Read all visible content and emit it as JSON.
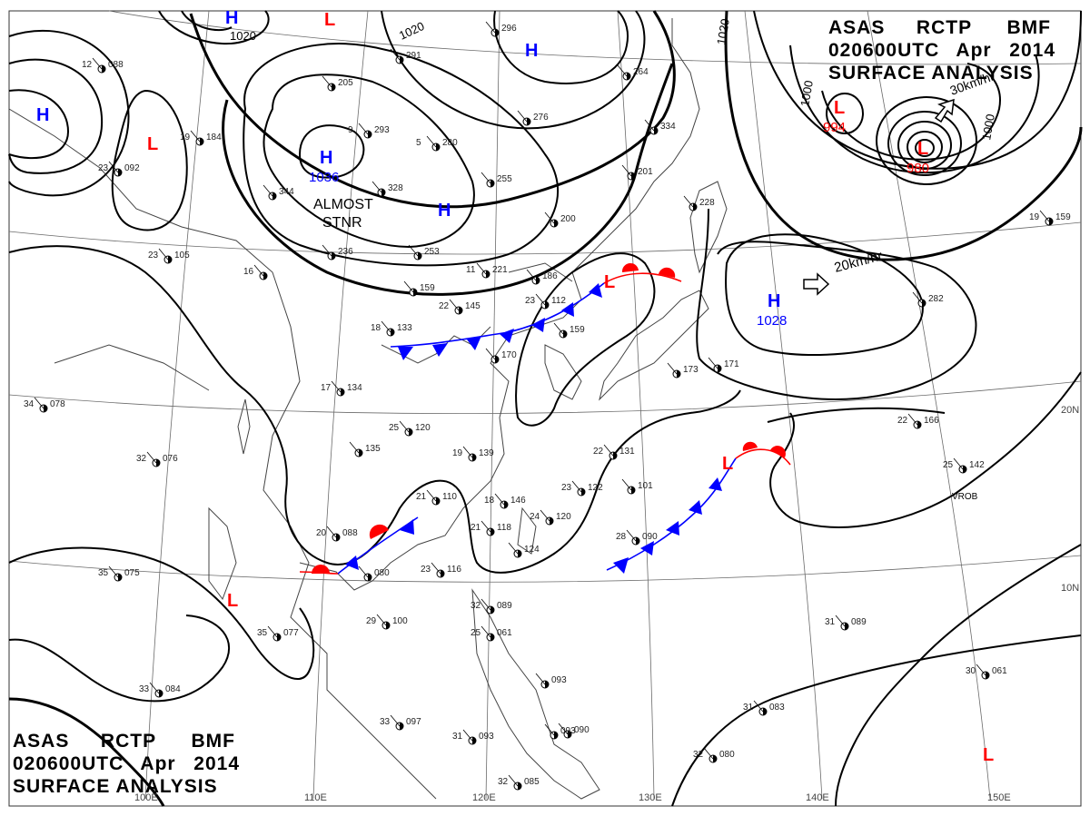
{
  "header": {
    "line1": [
      "ASAS",
      "RCTP",
      "BMF"
    ],
    "line2": [
      "020600UTC",
      "Apr",
      "2014"
    ],
    "line3": "SURFACE ANALYSIS"
  },
  "footer": {
    "line1": [
      "ASAS",
      "RCTP",
      "BMF"
    ],
    "line2": [
      "020600UTC",
      "Apr",
      "2014"
    ],
    "line3": "SURFACE ANALYSIS"
  },
  "longitudes": [
    "100E",
    "110E",
    "120E",
    "130E",
    "140E",
    "150E"
  ],
  "latitudes": [
    "20N",
    "10N"
  ],
  "isobar_labels": [
    "1020",
    "1020",
    "1020",
    "1000",
    "1000"
  ],
  "pressure_centers": [
    {
      "type": "H",
      "value": "1036"
    },
    {
      "type": "H",
      "value": "1028"
    },
    {
      "type": "L",
      "value": "994"
    },
    {
      "type": "L",
      "value": "980"
    },
    {
      "type": "H",
      "value": ""
    },
    {
      "type": "H",
      "value": ""
    },
    {
      "type": "H",
      "value": ""
    },
    {
      "type": "H",
      "value": ""
    },
    {
      "type": "L",
      "value": ""
    },
    {
      "type": "L",
      "value": ""
    },
    {
      "type": "L",
      "value": ""
    },
    {
      "type": "L",
      "value": ""
    },
    {
      "type": "L",
      "value": ""
    },
    {
      "type": "L",
      "value": ""
    }
  ],
  "annotations": {
    "stationary_note_1": "ALMOST",
    "stationary_note_2": "STNR",
    "motion_east": "20km/hr",
    "motion_low": "30km/hr",
    "station_code": "VROB"
  },
  "colors": {
    "high": "#0000ff",
    "low": "#ff0000",
    "cold_front": "#0000ff",
    "warm_front": "#ff0000",
    "isobar": "#000000",
    "coast": "#444444",
    "grid": "#555555"
  },
  "station_reports": [
    {
      "t": "12",
      "p": "088"
    },
    {
      "t": "23",
      "p": "092"
    },
    {
      "t": "19",
      "p": "184"
    },
    {
      "t": "9",
      "p": "293"
    },
    {
      "t": "5",
      "p": "280"
    },
    {
      "t": "",
      "p": "328"
    },
    {
      "t": "",
      "p": "344"
    },
    {
      "t": "",
      "p": "255"
    },
    {
      "t": "",
      "p": "205"
    },
    {
      "t": "",
      "p": "291"
    },
    {
      "t": "",
      "p": "296"
    },
    {
      "t": "",
      "p": "276"
    },
    {
      "t": "",
      "p": "264"
    },
    {
      "t": "",
      "p": "334"
    },
    {
      "t": "",
      "p": "201"
    },
    {
      "t": "",
      "p": "200"
    },
    {
      "t": "",
      "p": "253"
    },
    {
      "t": "",
      "p": "236"
    },
    {
      "t": "23",
      "p": "105"
    },
    {
      "t": "16",
      "p": ""
    },
    {
      "t": "11",
      "p": "221"
    },
    {
      "t": "",
      "p": "186"
    },
    {
      "t": "",
      "p": "159"
    },
    {
      "t": "22",
      "p": "145"
    },
    {
      "t": "18",
      "p": "133"
    },
    {
      "t": "23",
      "p": "112"
    },
    {
      "t": "",
      "p": "159"
    },
    {
      "t": "",
      "p": "170"
    },
    {
      "t": "17",
      "p": "134"
    },
    {
      "t": "25",
      "p": "120"
    },
    {
      "t": "",
      "p": "135"
    },
    {
      "t": "19",
      "p": "139"
    },
    {
      "t": "34",
      "p": "078"
    },
    {
      "t": "32",
      "p": "076"
    },
    {
      "t": "21",
      "p": "110"
    },
    {
      "t": "18",
      "p": "146"
    },
    {
      "t": "20",
      "p": "088"
    },
    {
      "t": "21",
      "p": "118"
    },
    {
      "t": "",
      "p": "124"
    },
    {
      "t": "24",
      "p": "120"
    },
    {
      "t": "23",
      "p": "122"
    },
    {
      "t": "22",
      "p": "131"
    },
    {
      "t": "",
      "p": "101"
    },
    {
      "t": "28",
      "p": "090"
    },
    {
      "t": "",
      "p": "080"
    },
    {
      "t": "23",
      "p": "116"
    },
    {
      "t": "35",
      "p": "075"
    },
    {
      "t": "29",
      "p": "100"
    },
    {
      "t": "35",
      "p": "077"
    },
    {
      "t": "32",
      "p": "089"
    },
    {
      "t": "25",
      "p": "061"
    },
    {
      "t": "33",
      "p": "084"
    },
    {
      "t": "33",
      "p": "097"
    },
    {
      "t": "31",
      "p": "093"
    },
    {
      "t": "",
      "p": "093"
    },
    {
      "t": "",
      "p": "090"
    },
    {
      "t": "32",
      "p": "085"
    },
    {
      "t": "31",
      "p": "089"
    },
    {
      "t": "30",
      "p": "061"
    },
    {
      "t": "31",
      "p": "083"
    },
    {
      "t": "32",
      "p": "080"
    },
    {
      "t": "22",
      "p": "166"
    },
    {
      "t": "25",
      "p": "142"
    },
    {
      "t": "19",
      "p": "159"
    },
    {
      "t": "",
      "p": "282"
    },
    {
      "t": "",
      "p": "228"
    },
    {
      "t": "",
      "p": "171"
    },
    {
      "t": "",
      "p": "173"
    },
    {
      "t": "",
      "p": "093"
    }
  ]
}
